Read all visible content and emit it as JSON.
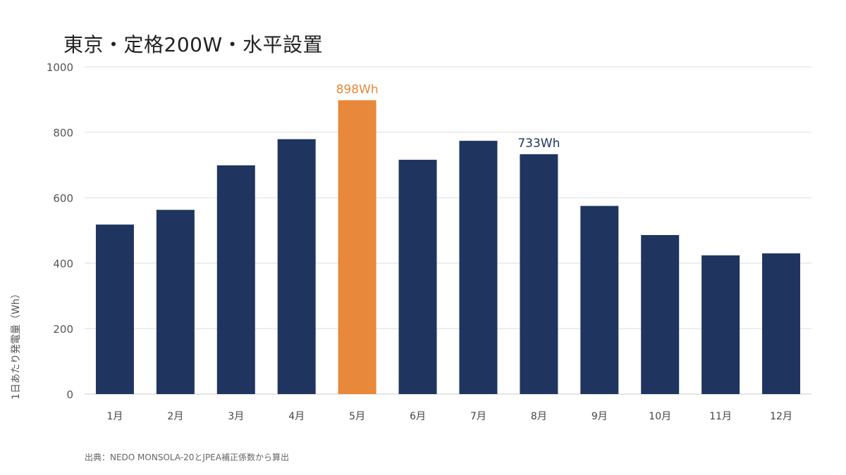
{
  "chart_data": {
    "type": "bar",
    "title": "東京・定格200W・水平設置",
    "ylabel": "1日あたり発電量（Wh）",
    "xlabel": "",
    "categories": [
      "1月",
      "2月",
      "3月",
      "4月",
      "5月",
      "6月",
      "7月",
      "8月",
      "9月",
      "10月",
      "11月",
      "12月"
    ],
    "values": [
      518,
      563,
      699,
      779,
      898,
      716,
      774,
      733,
      575,
      486,
      424,
      430
    ],
    "ylim": [
      0,
      1000
    ],
    "yticks": [
      "0",
      "200",
      "400",
      "600",
      "800",
      "1000"
    ],
    "data_labels": [
      {
        "index": 4,
        "text": "898Wh",
        "color": "#E8883A"
      },
      {
        "index": 7,
        "text": "733Wh",
        "color": "#1F3560"
      }
    ],
    "colors": {
      "default_bar": "#1F3560",
      "highlight_bar": "#E8883A",
      "highlight_index": 4
    },
    "grid": true,
    "legend": "none"
  },
  "footer": {
    "source": "出典：NEDO MONSOLA-20とJPEA補正係数から算出"
  }
}
